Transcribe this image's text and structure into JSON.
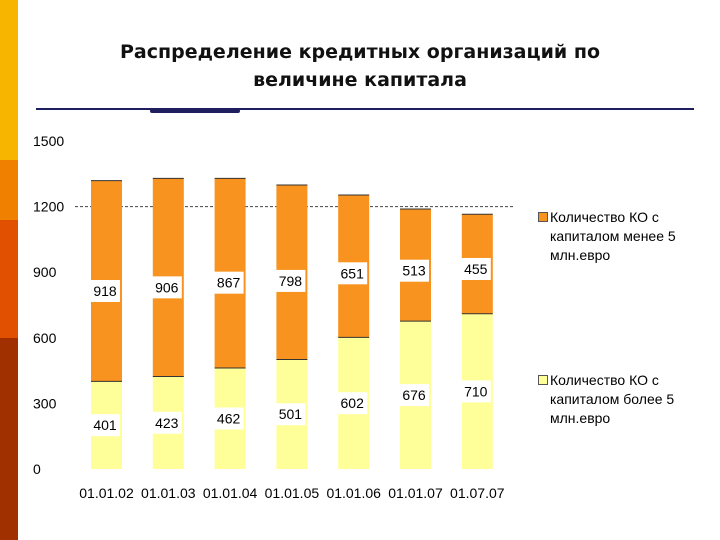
{
  "slide": {
    "title_line1": "Распределение кредитных организаций по",
    "title_line2": "величине капитала",
    "side_colors": [
      "#f7b500",
      "#f08000",
      "#e05000",
      "#a03000"
    ]
  },
  "chart_data": {
    "type": "bar",
    "stacked": true,
    "categories": [
      "01.01.02",
      "01.01.03",
      "01.01.04",
      "01.01.05",
      "01.01.06",
      "01.01.07",
      "01.07.07"
    ],
    "series": [
      {
        "name": "Количество КО с капиталом более 5 млн.евро",
        "values": [
          401,
          423,
          462,
          501,
          602,
          676,
          710
        ],
        "color": "#ffff99"
      },
      {
        "name": "Количество КО с капиталом менее 5 млн.евро",
        "values": [
          918,
          906,
          867,
          798,
          651,
          513,
          455
        ],
        "color": "#f7931e"
      }
    ],
    "yticks": [
      "0",
      "300",
      "600",
      "900",
      "1200",
      "1500"
    ],
    "ylim": [
      0,
      1500
    ],
    "reference_line": 1200,
    "legend_position": "right"
  }
}
